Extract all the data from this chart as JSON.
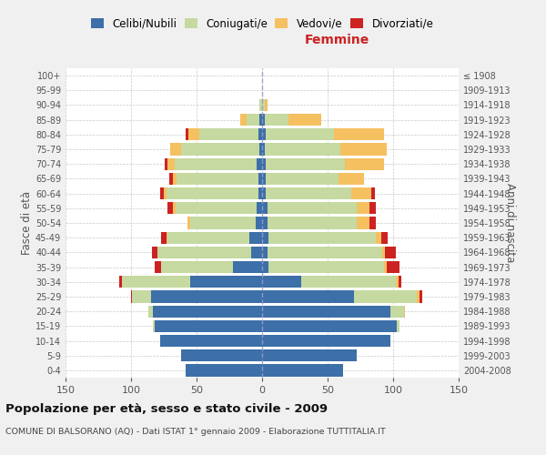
{
  "age_groups": [
    "0-4",
    "5-9",
    "10-14",
    "15-19",
    "20-24",
    "25-29",
    "30-34",
    "35-39",
    "40-44",
    "45-49",
    "50-54",
    "55-59",
    "60-64",
    "65-69",
    "70-74",
    "75-79",
    "80-84",
    "85-89",
    "90-94",
    "95-99",
    "100+"
  ],
  "birth_years": [
    "2004-2008",
    "1999-2003",
    "1994-1998",
    "1989-1993",
    "1984-1988",
    "1979-1983",
    "1974-1978",
    "1969-1973",
    "1964-1968",
    "1959-1963",
    "1954-1958",
    "1949-1953",
    "1944-1948",
    "1939-1943",
    "1934-1938",
    "1929-1933",
    "1924-1928",
    "1919-1923",
    "1914-1918",
    "1909-1913",
    "≤ 1908"
  ],
  "maschi": {
    "celibi": [
      58,
      62,
      78,
      82,
      83,
      85,
      55,
      22,
      8,
      10,
      5,
      4,
      3,
      3,
      4,
      2,
      3,
      2,
      0,
      0,
      0
    ],
    "coniugati": [
      0,
      0,
      0,
      1,
      4,
      14,
      52,
      55,
      72,
      62,
      50,
      62,
      70,
      62,
      63,
      60,
      45,
      10,
      2,
      0,
      0
    ],
    "vedovi": [
      0,
      0,
      0,
      0,
      0,
      0,
      0,
      0,
      0,
      1,
      2,
      2,
      2,
      3,
      5,
      8,
      8,
      5,
      0,
      0,
      0
    ],
    "divorziati": [
      0,
      0,
      0,
      0,
      0,
      1,
      2,
      5,
      4,
      4,
      0,
      4,
      3,
      3,
      2,
      0,
      2,
      0,
      0,
      0,
      0
    ]
  },
  "femmine": {
    "nubili": [
      62,
      72,
      98,
      103,
      98,
      70,
      30,
      5,
      4,
      5,
      4,
      4,
      3,
      3,
      3,
      2,
      3,
      2,
      0,
      0,
      0
    ],
    "coniugate": [
      0,
      0,
      0,
      2,
      10,
      48,
      72,
      88,
      88,
      82,
      68,
      68,
      65,
      55,
      60,
      58,
      52,
      18,
      2,
      0,
      0
    ],
    "vedove": [
      0,
      0,
      0,
      0,
      1,
      2,
      2,
      2,
      2,
      4,
      10,
      10,
      15,
      20,
      30,
      35,
      38,
      25,
      2,
      0,
      0
    ],
    "divorziate": [
      0,
      0,
      0,
      0,
      0,
      2,
      2,
      10,
      8,
      5,
      5,
      5,
      3,
      0,
      0,
      0,
      0,
      0,
      0,
      0,
      0
    ]
  },
  "colors": {
    "celibi": "#3d6fa8",
    "coniugati": "#c5d9a0",
    "vedovi": "#f5c060",
    "divorziati": "#cc2222"
  },
  "xlim": 150,
  "title": "Popolazione per età, sesso e stato civile - 2009",
  "subtitle": "COMUNE DI BALSORANO (AQ) - Dati ISTAT 1° gennaio 2009 - Elaborazione TUTTITALIA.IT",
  "ylabel_left": "Fasce di età",
  "ylabel_right": "Anni di nascita",
  "bg_color": "#f0f0f0",
  "plot_bg": "#ffffff",
  "grid_color": "#bbbbbb"
}
